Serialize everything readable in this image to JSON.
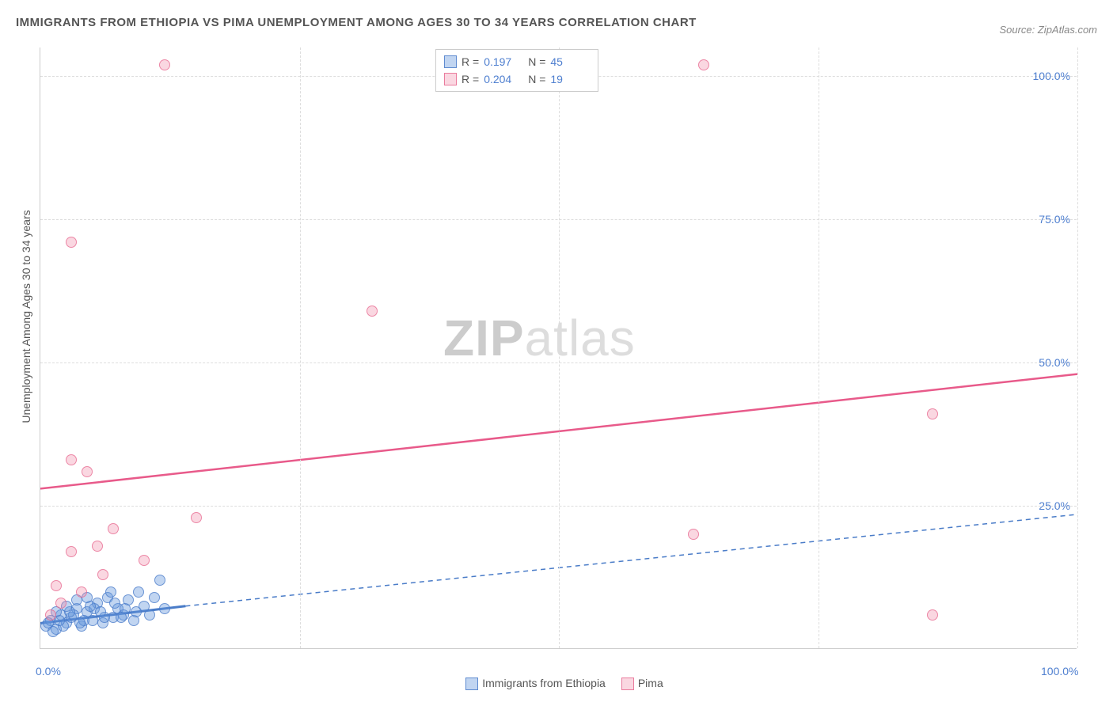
{
  "title": "IMMIGRANTS FROM ETHIOPIA VS PIMA UNEMPLOYMENT AMONG AGES 30 TO 34 YEARS CORRELATION CHART",
  "source": "Source: ZipAtlas.com",
  "y_axis_title": "Unemployment Among Ages 30 to 34 years",
  "watermark_bold": "ZIP",
  "watermark_rest": "atlas",
  "chart": {
    "type": "scatter",
    "background_color": "#ffffff",
    "grid_color": "#dddddd",
    "text_color": "#555555",
    "value_color": "#5080d0",
    "xlim": [
      0,
      100
    ],
    "ylim": [
      0,
      105
    ],
    "y_ticks": [
      {
        "v": 25,
        "label": "25.0%"
      },
      {
        "v": 50,
        "label": "50.0%"
      },
      {
        "v": 75,
        "label": "75.0%"
      },
      {
        "v": 100,
        "label": "100.0%"
      }
    ],
    "x_ticks": [
      {
        "v": 0,
        "label": "0.0%"
      },
      {
        "v": 100,
        "label": "100.0%"
      }
    ],
    "x_grid": [
      25,
      50,
      75,
      100
    ],
    "marker_size": 14
  },
  "series": [
    {
      "name": "Immigrants from Ethiopia",
      "color_fill": "rgba(100,150,220,0.4)",
      "color_stroke": "rgba(70,120,200,0.8)",
      "R": "0.197",
      "N": "45",
      "trend": {
        "x1": 0,
        "y1": 4.5,
        "x2": 14,
        "y2": 7.5,
        "solid": true,
        "color": "#4a7cc8",
        "ext_x2": 100,
        "ext_y2": 23.5
      },
      "points": [
        {
          "x": 0.5,
          "y": 4
        },
        {
          "x": 1,
          "y": 5
        },
        {
          "x": 1.5,
          "y": 3.5
        },
        {
          "x": 2,
          "y": 6
        },
        {
          "x": 2.5,
          "y": 4.5
        },
        {
          "x": 3,
          "y": 5.5
        },
        {
          "x": 3.5,
          "y": 7
        },
        {
          "x": 4,
          "y": 4
        },
        {
          "x": 4.5,
          "y": 6.5
        },
        {
          "x": 5,
          "y": 5
        },
        {
          "x": 5.5,
          "y": 8
        },
        {
          "x": 6,
          "y": 4.5
        },
        {
          "x": 6.5,
          "y": 9
        },
        {
          "x": 7,
          "y": 5.5
        },
        {
          "x": 7.5,
          "y": 7
        },
        {
          "x": 8,
          "y": 6
        },
        {
          "x": 8.5,
          "y": 8.5
        },
        {
          "x": 9,
          "y": 5
        },
        {
          "x": 9.5,
          "y": 10
        },
        {
          "x": 10,
          "y": 7.5
        },
        {
          "x": 10.5,
          "y": 6
        },
        {
          "x": 11,
          "y": 9
        },
        {
          "x": 11.5,
          "y": 12
        },
        {
          "x": 12,
          "y": 7
        },
        {
          "x": 1.2,
          "y": 3
        },
        {
          "x": 2.2,
          "y": 4
        },
        {
          "x": 3.2,
          "y": 6
        },
        {
          "x": 4.2,
          "y": 5
        },
        {
          "x": 5.2,
          "y": 7
        },
        {
          "x": 6.2,
          "y": 5.5
        },
        {
          "x": 7.2,
          "y": 8
        },
        {
          "x": 1.8,
          "y": 5
        },
        {
          "x": 2.8,
          "y": 6.5
        },
        {
          "x": 3.8,
          "y": 4.5
        },
        {
          "x": 4.8,
          "y": 7.5
        },
        {
          "x": 0.8,
          "y": 4.5
        },
        {
          "x": 8.2,
          "y": 7
        },
        {
          "x": 9.2,
          "y": 6.5
        },
        {
          "x": 6.8,
          "y": 10
        },
        {
          "x": 5.8,
          "y": 6.5
        },
        {
          "x": 1.5,
          "y": 6.5
        },
        {
          "x": 3.5,
          "y": 8.5
        },
        {
          "x": 7.8,
          "y": 5.5
        },
        {
          "x": 2.5,
          "y": 7.5
        },
        {
          "x": 4.5,
          "y": 9
        }
      ]
    },
    {
      "name": "Pima",
      "color_fill": "rgba(240,140,170,0.35)",
      "color_stroke": "rgba(230,100,140,0.8)",
      "R": "0.204",
      "N": "19",
      "trend": {
        "x1": 0,
        "y1": 28,
        "x2": 100,
        "y2": 48,
        "solid": true,
        "color": "#e85a8a"
      },
      "points": [
        {
          "x": 12,
          "y": 102
        },
        {
          "x": 64,
          "y": 102
        },
        {
          "x": 3,
          "y": 71
        },
        {
          "x": 32,
          "y": 59
        },
        {
          "x": 86,
          "y": 41
        },
        {
          "x": 3,
          "y": 33
        },
        {
          "x": 4.5,
          "y": 31
        },
        {
          "x": 15,
          "y": 23
        },
        {
          "x": 7,
          "y": 21
        },
        {
          "x": 63,
          "y": 20
        },
        {
          "x": 3,
          "y": 17
        },
        {
          "x": 5.5,
          "y": 18
        },
        {
          "x": 10,
          "y": 15.5
        },
        {
          "x": 6,
          "y": 13
        },
        {
          "x": 1.5,
          "y": 11
        },
        {
          "x": 4,
          "y": 10
        },
        {
          "x": 2,
          "y": 8
        },
        {
          "x": 86,
          "y": 6
        },
        {
          "x": 1,
          "y": 6
        }
      ]
    }
  ],
  "legend_bottom": [
    {
      "swatch": "blue",
      "label": "Immigrants from Ethiopia"
    },
    {
      "swatch": "pink",
      "label": "Pima"
    }
  ]
}
